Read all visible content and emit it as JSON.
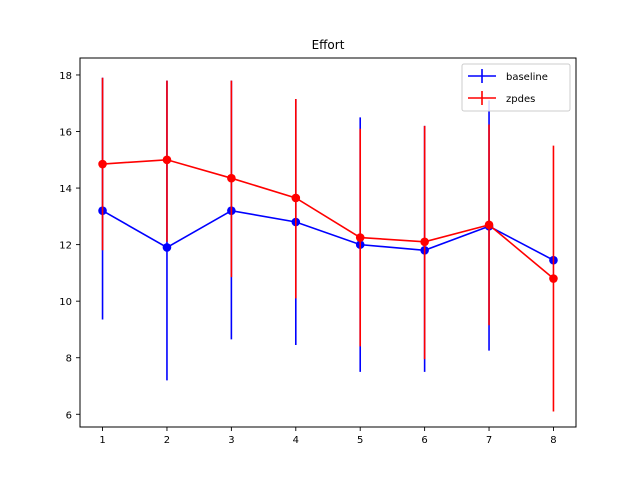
{
  "chart_data": {
    "type": "line",
    "title": "Effort",
    "xlabel": "",
    "ylabel": "",
    "x": [
      1,
      2,
      3,
      4,
      5,
      6,
      7,
      8
    ],
    "xlim": [
      0.65,
      8.35
    ],
    "ylim": [
      5.55,
      18.6
    ],
    "xticks": [
      "1",
      "2",
      "3",
      "4",
      "5",
      "6",
      "7",
      "8"
    ],
    "yticks": [
      "6",
      "8",
      "10",
      "12",
      "14",
      "16",
      "18"
    ],
    "grid": false,
    "legend_position": "top-right",
    "series": [
      {
        "name": "baseline",
        "color": "#0000ff",
        "values": [
          13.2,
          11.9,
          13.2,
          12.8,
          12.0,
          11.8,
          12.65,
          11.45
        ],
        "err_low": [
          9.35,
          7.2,
          8.65,
          8.45,
          7.5,
          7.5,
          8.25,
          11.45
        ],
        "err_high": [
          17.9,
          17.8,
          17.8,
          17.15,
          16.5,
          16.2,
          17.1,
          11.45
        ]
      },
      {
        "name": "zpdes",
        "color": "#ff0000",
        "values": [
          14.85,
          15.0,
          14.35,
          13.65,
          12.25,
          12.1,
          12.7,
          10.8
        ],
        "err_low": [
          11.8,
          12.1,
          10.85,
          10.1,
          8.4,
          7.95,
          9.15,
          6.1
        ],
        "err_high": [
          17.9,
          17.8,
          17.8,
          17.15,
          16.1,
          16.2,
          16.25,
          15.5
        ]
      }
    ]
  }
}
